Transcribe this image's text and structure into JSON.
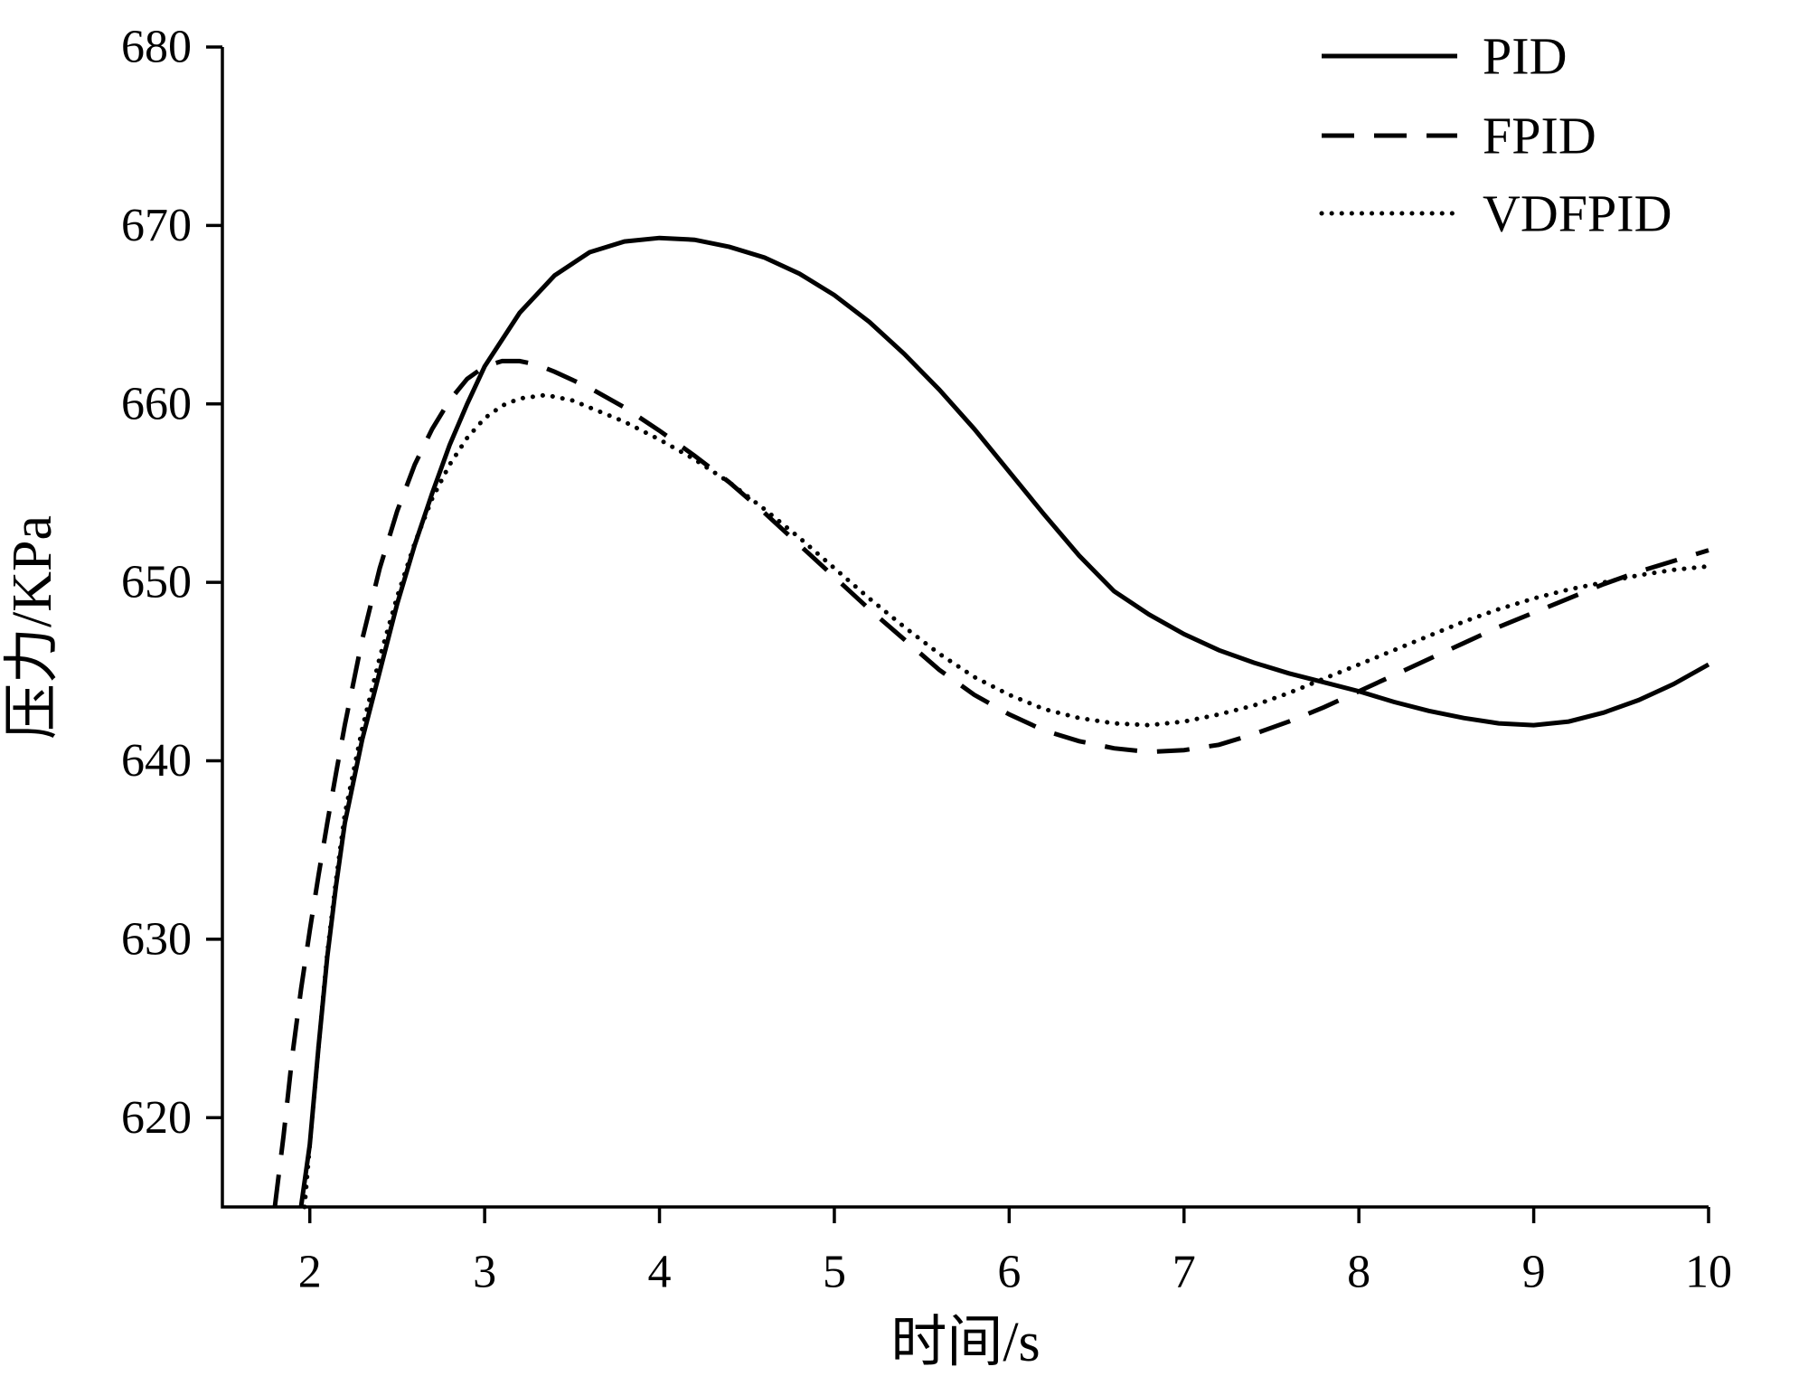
{
  "chart": {
    "background": "#ffffff",
    "line_color": "#000000"
  },
  "chart_data": {
    "type": "line",
    "title": "",
    "xlabel": "时间/s",
    "ylabel": "压力/KPa",
    "xlim": [
      1.5,
      10
    ],
    "ylim": [
      615,
      680
    ],
    "x_ticks": [
      2,
      3,
      4,
      5,
      6,
      7,
      8,
      9,
      10
    ],
    "y_ticks": [
      620,
      630,
      640,
      650,
      660,
      670,
      680
    ],
    "grid": false,
    "legend_position": "top-right",
    "series": [
      {
        "name": "PID",
        "style": "solid",
        "points": [
          [
            1.95,
            615
          ],
          [
            2.0,
            618.5
          ],
          [
            2.05,
            624
          ],
          [
            2.1,
            629
          ],
          [
            2.15,
            633
          ],
          [
            2.2,
            636.5
          ],
          [
            2.3,
            641.2
          ],
          [
            2.4,
            645
          ],
          [
            2.5,
            648.8
          ],
          [
            2.6,
            652.1
          ],
          [
            2.7,
            655
          ],
          [
            2.8,
            657.7
          ],
          [
            2.9,
            660
          ],
          [
            3.0,
            662.1
          ],
          [
            3.2,
            665.1
          ],
          [
            3.4,
            667.2
          ],
          [
            3.6,
            668.5
          ],
          [
            3.8,
            669.1
          ],
          [
            4.0,
            669.3
          ],
          [
            4.2,
            669.2
          ],
          [
            4.4,
            668.8
          ],
          [
            4.6,
            668.2
          ],
          [
            4.8,
            667.3
          ],
          [
            5.0,
            666.1
          ],
          [
            5.2,
            664.6
          ],
          [
            5.4,
            662.8
          ],
          [
            5.6,
            660.8
          ],
          [
            5.8,
            658.6
          ],
          [
            6.0,
            656.2
          ],
          [
            6.2,
            653.8
          ],
          [
            6.4,
            651.5
          ],
          [
            6.6,
            649.5
          ],
          [
            6.8,
            648.2
          ],
          [
            7.0,
            647.1
          ],
          [
            7.2,
            646.2
          ],
          [
            7.4,
            645.5
          ],
          [
            7.6,
            644.9
          ],
          [
            7.8,
            644.4
          ],
          [
            8.0,
            643.9
          ],
          [
            8.2,
            643.3
          ],
          [
            8.4,
            642.8
          ],
          [
            8.6,
            642.4
          ],
          [
            8.8,
            642.1
          ],
          [
            9.0,
            642.0
          ],
          [
            9.2,
            642.2
          ],
          [
            9.4,
            642.7
          ],
          [
            9.6,
            643.4
          ],
          [
            9.8,
            644.3
          ],
          [
            10.0,
            645.4
          ]
        ]
      },
      {
        "name": "FPID",
        "style": "dashed",
        "points": [
          [
            1.8,
            615
          ],
          [
            1.85,
            619
          ],
          [
            1.9,
            623.5
          ],
          [
            1.95,
            627.2
          ],
          [
            2.0,
            630.5
          ],
          [
            2.05,
            633.6
          ],
          [
            2.1,
            636.5
          ],
          [
            2.15,
            639.3
          ],
          [
            2.2,
            642
          ],
          [
            2.3,
            646.8
          ],
          [
            2.4,
            650.8
          ],
          [
            2.5,
            654
          ],
          [
            2.6,
            656.6
          ],
          [
            2.7,
            658.6
          ],
          [
            2.8,
            660.2
          ],
          [
            2.9,
            661.4
          ],
          [
            3.0,
            662.1
          ],
          [
            3.1,
            662.4
          ],
          [
            3.2,
            662.4
          ],
          [
            3.3,
            662.2
          ],
          [
            3.4,
            661.8
          ],
          [
            3.6,
            660.9
          ],
          [
            3.8,
            659.8
          ],
          [
            4.0,
            658.5
          ],
          [
            4.2,
            657.1
          ],
          [
            4.4,
            655.6
          ],
          [
            4.6,
            653.9
          ],
          [
            4.8,
            652.1
          ],
          [
            5.0,
            650.3
          ],
          [
            5.2,
            648.5
          ],
          [
            5.4,
            646.8
          ],
          [
            5.6,
            645.1
          ],
          [
            5.8,
            643.7
          ],
          [
            6.0,
            642.6
          ],
          [
            6.2,
            641.7
          ],
          [
            6.4,
            641.1
          ],
          [
            6.6,
            640.7
          ],
          [
            6.8,
            640.5
          ],
          [
            7.0,
            640.6
          ],
          [
            7.2,
            640.9
          ],
          [
            7.4,
            641.5
          ],
          [
            7.6,
            642.2
          ],
          [
            7.8,
            643.0
          ],
          [
            8.0,
            643.9
          ],
          [
            8.2,
            644.8
          ],
          [
            8.4,
            645.7
          ],
          [
            8.6,
            646.6
          ],
          [
            8.8,
            647.5
          ],
          [
            9.0,
            648.3
          ],
          [
            9.2,
            649.1
          ],
          [
            9.4,
            649.9
          ],
          [
            9.6,
            650.6
          ],
          [
            9.8,
            651.2
          ],
          [
            10.0,
            651.8
          ]
        ]
      },
      {
        "name": "VDFPID",
        "style": "dotted",
        "points": [
          [
            1.97,
            615
          ],
          [
            2.0,
            618.5
          ],
          [
            2.05,
            624
          ],
          [
            2.1,
            629.2
          ],
          [
            2.15,
            633.3
          ],
          [
            2.2,
            637
          ],
          [
            2.3,
            641.8
          ],
          [
            2.4,
            645.8
          ],
          [
            2.5,
            649.2
          ],
          [
            2.6,
            652.2
          ],
          [
            2.7,
            654.7
          ],
          [
            2.8,
            656.6
          ],
          [
            2.9,
            658.1
          ],
          [
            3.0,
            659.2
          ],
          [
            3.1,
            659.9
          ],
          [
            3.2,
            660.3
          ],
          [
            3.35,
            660.5
          ],
          [
            3.5,
            660.2
          ],
          [
            3.6,
            659.8
          ],
          [
            3.8,
            659.0
          ],
          [
            4.0,
            658.0
          ],
          [
            4.2,
            656.9
          ],
          [
            4.4,
            655.6
          ],
          [
            4.6,
            654.1
          ],
          [
            4.8,
            652.5
          ],
          [
            5.0,
            650.8
          ],
          [
            5.2,
            649.1
          ],
          [
            5.4,
            647.5
          ],
          [
            5.6,
            646.0
          ],
          [
            5.8,
            644.7
          ],
          [
            6.0,
            643.7
          ],
          [
            6.2,
            642.9
          ],
          [
            6.4,
            642.4
          ],
          [
            6.6,
            642.1
          ],
          [
            6.8,
            642.0
          ],
          [
            7.0,
            642.2
          ],
          [
            7.2,
            642.6
          ],
          [
            7.4,
            643.1
          ],
          [
            7.6,
            643.8
          ],
          [
            7.8,
            644.6
          ],
          [
            8.0,
            645.4
          ],
          [
            8.2,
            646.2
          ],
          [
            8.4,
            647.0
          ],
          [
            8.6,
            647.8
          ],
          [
            8.8,
            648.5
          ],
          [
            9.0,
            649.1
          ],
          [
            9.2,
            649.6
          ],
          [
            9.4,
            650.0
          ],
          [
            9.6,
            650.4
          ],
          [
            9.8,
            650.7
          ],
          [
            10.0,
            650.9
          ]
        ]
      }
    ]
  }
}
